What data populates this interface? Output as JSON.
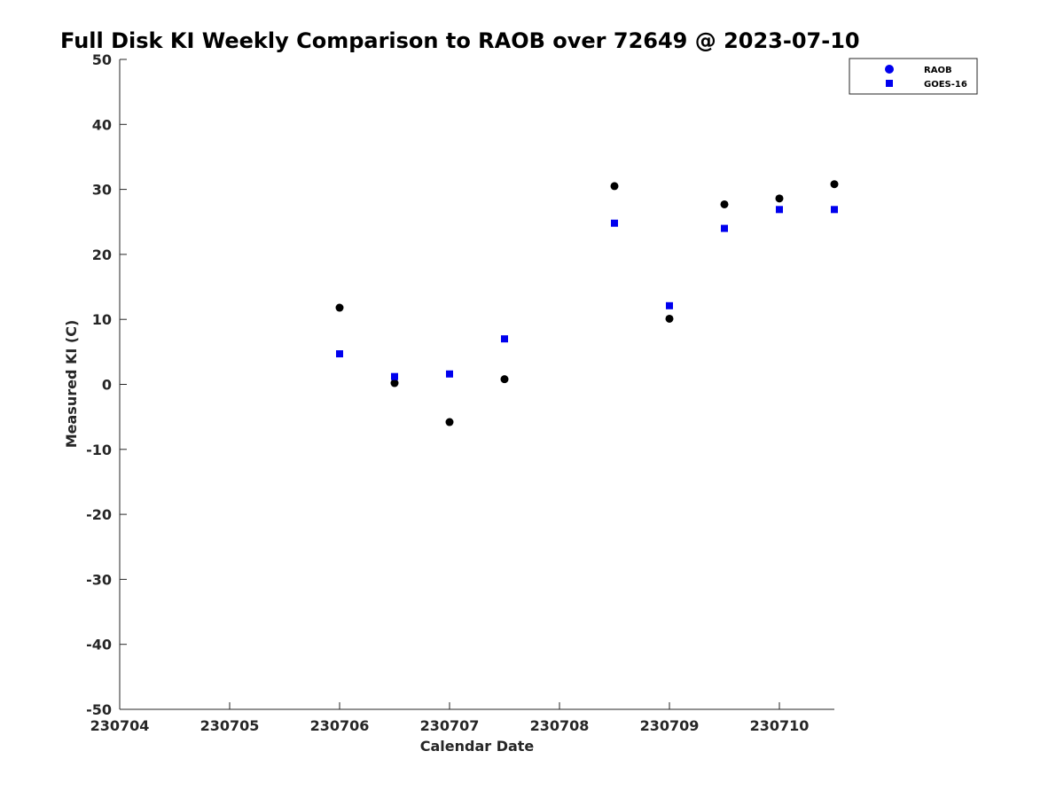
{
  "chart_data": {
    "type": "scatter",
    "title": "Full Disk KI Weekly Comparison to RAOB over 72649 @ 2023-07-10",
    "xlabel": "Calendar Date",
    "ylabel": "Measured KI (C)",
    "x_ticks": [
      "230704",
      "230705",
      "230706",
      "230707",
      "230708",
      "230709",
      "230710"
    ],
    "y_ticks": [
      "50",
      "40",
      "30",
      "20",
      "10",
      "0",
      "-10",
      "-20",
      "-30",
      "-40",
      "-50"
    ],
    "xlim": [
      0,
      6.5
    ],
    "ylim": [
      -50,
      50
    ],
    "grid": false,
    "legend_position": "top-right",
    "series": [
      {
        "name": "RAOB",
        "marker": "circle",
        "legend_color": "#0000ee",
        "point_color": "#000000",
        "points": [
          {
            "x": 2.0,
            "y": 11.8
          },
          {
            "x": 2.5,
            "y": 0.2
          },
          {
            "x": 3.0,
            "y": -5.8
          },
          {
            "x": 3.5,
            "y": 0.8
          },
          {
            "x": 4.5,
            "y": 30.5
          },
          {
            "x": 5.0,
            "y": 10.1
          },
          {
            "x": 5.5,
            "y": 27.7
          },
          {
            "x": 6.0,
            "y": 28.6
          },
          {
            "x": 6.5,
            "y": 30.8
          }
        ]
      },
      {
        "name": "GOES-16",
        "marker": "square",
        "legend_color": "#0000ee",
        "point_color": "#0000ee",
        "points": [
          {
            "x": 2.0,
            "y": 4.7
          },
          {
            "x": 2.5,
            "y": 1.2
          },
          {
            "x": 3.0,
            "y": 1.6
          },
          {
            "x": 3.5,
            "y": 7.0
          },
          {
            "x": 4.5,
            "y": 24.8
          },
          {
            "x": 5.0,
            "y": 12.1
          },
          {
            "x": 5.5,
            "y": 24.0
          },
          {
            "x": 6.0,
            "y": 26.9
          },
          {
            "x": 6.5,
            "y": 26.9
          }
        ]
      }
    ]
  }
}
